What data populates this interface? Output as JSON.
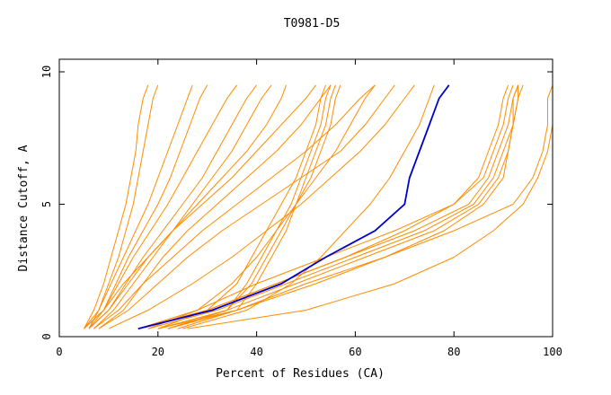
{
  "chart_data": {
    "type": "line",
    "title": "T0981-D5",
    "xlabel": "Percent of Residues (CA)",
    "ylabel": "Distance Cutoff, A",
    "xlim": [
      0,
      100
    ],
    "ylim": [
      0,
      10
    ],
    "xticks": [
      "0",
      "20",
      "40",
      "60",
      "80",
      "100"
    ],
    "yticks": [
      "0",
      "5",
      "10"
    ],
    "grid": false,
    "colors": {
      "background": "#ffffff",
      "frame": "#000000",
      "others": "#ff8c00",
      "highlight": "#0000cd"
    },
    "series": [
      {
        "y": [
          0.3,
          1.0,
          2.0,
          3.0,
          4.0,
          5.0,
          6.0,
          7.0,
          8.0,
          9.0,
          9.5
        ],
        "x": [
          5,
          7,
          9,
          10.5,
          12,
          13.5,
          14.5,
          15.5,
          16,
          17,
          18
        ]
      },
      {
        "y": [
          0.3,
          1.0,
          2.0,
          3.0,
          4.0,
          5.0,
          6.0,
          7.0,
          8.0,
          9.0,
          9.5
        ],
        "x": [
          6,
          8,
          10,
          12,
          13.5,
          15,
          16,
          17,
          18,
          19,
          20
        ]
      },
      {
        "y": [
          0.3,
          1.0,
          2.0,
          3.0,
          4.0,
          5.0,
          6.0,
          7.0,
          8.0,
          9.0,
          9.5
        ],
        "x": [
          5,
          8,
          10.5,
          13,
          15.5,
          18,
          20,
          22,
          24,
          26,
          27
        ]
      },
      {
        "y": [
          0.3,
          1.0,
          2.0,
          3.0,
          4.0,
          5.0,
          6.0,
          7.0,
          8.0,
          9.0,
          9.5
        ],
        "x": [
          6,
          9,
          11.5,
          14,
          17,
          20,
          22.5,
          24.5,
          26.5,
          28.5,
          30
        ]
      },
      {
        "y": [
          0.3,
          1.0,
          2.0,
          3.0,
          4.0,
          5.0,
          6.0,
          7.0,
          8.0,
          9.0,
          9.5
        ],
        "x": [
          5,
          9,
          12,
          15,
          18.5,
          22,
          25,
          28,
          31,
          34,
          36
        ]
      },
      {
        "y": [
          0.3,
          1.0,
          2.0,
          3.0,
          4.0,
          5.0,
          6.0,
          7.0,
          8.0,
          9.0,
          9.5
        ],
        "x": [
          6,
          10,
          13.5,
          17,
          21,
          25,
          29,
          32,
          35,
          38,
          40
        ]
      },
      {
        "y": [
          0.3,
          1.0,
          2.0,
          3.0,
          4.0,
          5.0,
          6.0,
          7.0,
          8.0,
          9.0,
          9.5
        ],
        "x": [
          7,
          11,
          15,
          19,
          23,
          27,
          31,
          35,
          38,
          41,
          43
        ]
      },
      {
        "y": [
          0.3,
          1.0,
          2.0,
          3.0,
          4.0,
          5.0,
          6.0,
          7.0,
          8.0,
          9.0,
          9.5
        ],
        "x": [
          5,
          9,
          13,
          18,
          23,
          28,
          33,
          38,
          42,
          45,
          46
        ]
      },
      {
        "y": [
          0.3,
          1.0,
          2.0,
          3.0,
          4.0,
          5.0,
          6.0,
          7.0,
          8.0,
          9.0,
          9.5
        ],
        "x": [
          6,
          10,
          14,
          18,
          23,
          29,
          35,
          40,
          45,
          50,
          52
        ]
      },
      {
        "y": [
          0.3,
          1.0,
          2.0,
          3.0,
          4.0,
          5.0,
          6.0,
          7.0,
          8.0,
          9.0,
          9.5
        ],
        "x": [
          8,
          13,
          17,
          21,
          26,
          32,
          38,
          44,
          49,
          53,
          55
        ]
      },
      {
        "y": [
          0.3,
          1.0,
          2.0,
          3.0,
          4.0,
          5.0,
          6.0,
          7.0,
          8.0,
          9.0,
          9.5
        ],
        "x": [
          7,
          12,
          17,
          23,
          29,
          36,
          43,
          50,
          56,
          61,
          64
        ]
      },
      {
        "y": [
          0.3,
          1.0,
          2.0,
          3.0,
          4.0,
          5.0,
          6.0,
          7.0,
          8.0,
          9.0,
          9.5
        ],
        "x": [
          8,
          14,
          20,
          26,
          33,
          41,
          49,
          57,
          62,
          66,
          68
        ]
      },
      {
        "y": [
          0.3,
          1.0,
          2.0,
          3.0,
          4.0,
          5.0,
          6.0,
          7.0,
          8.0,
          9.0,
          9.5
        ],
        "x": [
          10,
          18,
          27,
          35,
          42,
          49,
          55,
          61,
          66,
          70,
          72
        ]
      },
      {
        "y": [
          0.3,
          1.0,
          2.0,
          3.0,
          4.0,
          5.0,
          6.0,
          7.0,
          8.0,
          9.0,
          9.5
        ],
        "x": [
          22,
          34,
          39,
          42,
          45,
          48,
          51,
          53,
          55,
          56,
          57
        ]
      },
      {
        "y": [
          0.3,
          1.0,
          2.0,
          3.0,
          4.0,
          5.0,
          6.0,
          7.0,
          8.0,
          9.0,
          9.5
        ],
        "x": [
          22,
          34,
          38,
          41,
          44,
          47,
          49,
          51,
          53,
          54,
          55
        ]
      },
      {
        "y": [
          0.3,
          1.0,
          2.0,
          3.0,
          4.0,
          5.0,
          6.0,
          7.0,
          8.0,
          9.0,
          9.5
        ],
        "x": [
          24,
          36,
          40,
          43,
          46,
          48,
          50,
          52,
          54,
          55,
          56
        ]
      },
      {
        "y": [
          0.3,
          1.0,
          2.0,
          3.0,
          4.0,
          5.0,
          6.0,
          7.0,
          8.0,
          9.0,
          9.5
        ],
        "x": [
          20,
          30,
          36,
          39,
          42,
          45,
          48,
          50,
          52,
          53,
          54
        ]
      },
      {
        "y": [
          0.3,
          1.0,
          2.0,
          3.0,
          4.0,
          5.0,
          6.0,
          7.0,
          8.0,
          9.0,
          9.5
        ],
        "x": [
          18,
          28,
          35,
          40,
          44,
          48,
          52,
          56,
          59,
          62,
          64
        ]
      },
      {
        "y": [
          0.3,
          1.0,
          2.0,
          3.0,
          4.0,
          5.0,
          6.0,
          7.0,
          8.0,
          9.0,
          9.5
        ],
        "x": [
          25,
          38,
          47,
          53,
          58,
          63,
          67,
          70,
          73,
          75,
          76
        ]
      },
      {
        "y": [
          0.3,
          1.0,
          2.0,
          3.0,
          4.0,
          5.0,
          6.0,
          7.0,
          8.0,
          9.0,
          9.5
        ],
        "x": [
          16,
          30,
          44,
          58,
          72,
          83,
          87,
          89,
          91,
          92,
          93
        ]
      },
      {
        "y": [
          0.3,
          1.0,
          2.0,
          3.0,
          4.0,
          5.0,
          6.0,
          7.0,
          8.0,
          9.0,
          9.5
        ],
        "x": [
          16,
          28,
          40,
          54,
          68,
          80,
          86,
          88,
          90,
          91,
          92
        ]
      },
      {
        "y": [
          0.3,
          1.0,
          2.0,
          3.0,
          4.0,
          5.0,
          6.0,
          7.0,
          8.0,
          9.0,
          9.5
        ],
        "x": [
          18,
          32,
          46,
          60,
          74,
          84,
          88,
          90,
          92,
          93,
          94
        ]
      },
      {
        "y": [
          0.3,
          1.0,
          2.0,
          3.0,
          4.0,
          5.0,
          6.0,
          7.0,
          8.0,
          9.0,
          9.5
        ],
        "x": [
          20,
          34,
          48,
          62,
          76,
          85,
          89,
          91,
          92,
          93,
          93
        ]
      },
      {
        "y": [
          0.3,
          1.0,
          2.0,
          3.0,
          4.0,
          5.0,
          6.0,
          7.0,
          8.0,
          9.0,
          9.5
        ],
        "x": [
          16,
          30,
          44,
          58,
          70,
          80,
          85,
          87,
          89,
          90,
          91
        ]
      },
      {
        "y": [
          0.3,
          1.0,
          2.0,
          3.0,
          4.0,
          5.0,
          6.0,
          7.0,
          8.0,
          9.0,
          9.5
        ],
        "x": [
          22,
          36,
          50,
          66,
          80,
          92,
          96,
          98,
          99,
          99,
          100
        ]
      },
      {
        "y": [
          0.3,
          1.0,
          2.0,
          3.0,
          4.0,
          5.0,
          6.0,
          7.0,
          8.0,
          9.0,
          9.5
        ],
        "x": [
          26,
          50,
          68,
          80,
          88,
          94,
          97,
          99,
          100,
          100,
          100
        ]
      },
      {
        "y": [
          0.3,
          1.0,
          2.0,
          3.0,
          4.0,
          5.0,
          6.0,
          7.0,
          8.0,
          9.0,
          9.5
        ],
        "x": [
          20,
          36,
          52,
          66,
          78,
          86,
          90,
          91,
          92,
          92,
          93
        ]
      },
      {
        "highlight": true,
        "y": [
          0.3,
          1.0,
          2.0,
          3.0,
          4.0,
          5.0,
          6.0,
          7.0,
          8.0,
          9.0,
          9.5
        ],
        "x": [
          16,
          31,
          45,
          54,
          64,
          70,
          71,
          73,
          75,
          77,
          79
        ]
      }
    ]
  }
}
